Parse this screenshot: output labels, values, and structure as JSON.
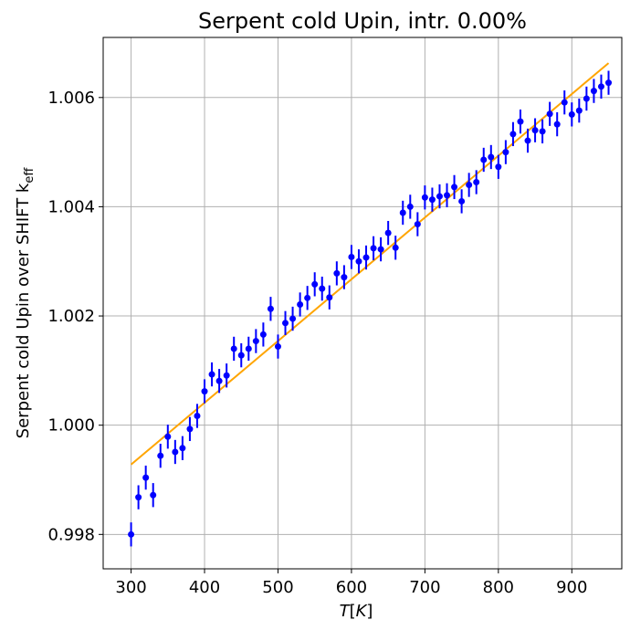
{
  "chart_data": {
    "type": "scatter",
    "title": "Serpent cold Upin, intr. 0.00%",
    "xlabel": {
      "base": "T",
      "bracket_open": "[",
      "unit": "K",
      "bracket_close": "]"
    },
    "ylabel": {
      "main": "Serpent cold Upin over SHIFT k",
      "subscript": "eff"
    },
    "xlim": [
      262,
      968
    ],
    "ylim": [
      0.99737,
      1.0071
    ],
    "x_ticks": [
      300,
      400,
      500,
      600,
      700,
      800,
      900
    ],
    "x_tick_labels": [
      "300",
      "400",
      "500",
      "600",
      "700",
      "800",
      "900"
    ],
    "y_ticks": [
      0.998,
      1.0,
      1.002,
      1.004,
      1.006
    ],
    "y_tick_labels": [
      "0.998",
      "1.000",
      "1.002",
      "1.004",
      "1.006"
    ],
    "grid": true,
    "colors": {
      "points": "#0000ff",
      "fit": "#ffa500",
      "grid": "#b0b0b0",
      "axes": "#000000"
    },
    "series": [
      {
        "kind": "points_with_errorbars",
        "marker": "circle",
        "yerr": 0.00022,
        "x": [
          300,
          310,
          320,
          330,
          340,
          350,
          360,
          370,
          380,
          390,
          400,
          410,
          420,
          430,
          440,
          450,
          460,
          470,
          480,
          490,
          500,
          510,
          520,
          530,
          540,
          550,
          560,
          570,
          580,
          590,
          600,
          610,
          620,
          630,
          640,
          650,
          660,
          670,
          680,
          690,
          700,
          710,
          720,
          730,
          740,
          750,
          760,
          770,
          780,
          790,
          800,
          810,
          820,
          830,
          840,
          850,
          860,
          870,
          880,
          890,
          900,
          910,
          920,
          930,
          940,
          950
        ],
        "y": [
          0.998,
          0.99868,
          0.99904,
          0.99872,
          0.99944,
          0.99979,
          0.99951,
          0.99958,
          0.99993,
          1.00017,
          1.00062,
          1.00093,
          1.00081,
          1.00091,
          1.0014,
          1.00128,
          1.0014,
          1.00154,
          1.00166,
          1.00213,
          1.00144,
          1.00187,
          1.00195,
          1.00221,
          1.00233,
          1.00258,
          1.0025,
          1.00234,
          1.00278,
          1.00271,
          1.00308,
          1.003,
          1.00307,
          1.00324,
          1.00322,
          1.00352,
          1.00325,
          1.00389,
          1.004,
          1.00368,
          1.00417,
          1.00413,
          1.00419,
          1.00421,
          1.00436,
          1.0041,
          1.0044,
          1.00445,
          1.00486,
          1.00491,
          1.00473,
          1.005,
          1.00533,
          1.00556,
          1.00521,
          1.0054,
          1.00538,
          1.0057,
          1.00551,
          1.00591,
          1.00569,
          1.00576,
          1.00598,
          1.00612,
          1.0062,
          1.00627
        ]
      },
      {
        "kind": "line",
        "x": [
          300,
          950
        ],
        "y": [
          0.99928,
          1.00663
        ]
      }
    ]
  }
}
